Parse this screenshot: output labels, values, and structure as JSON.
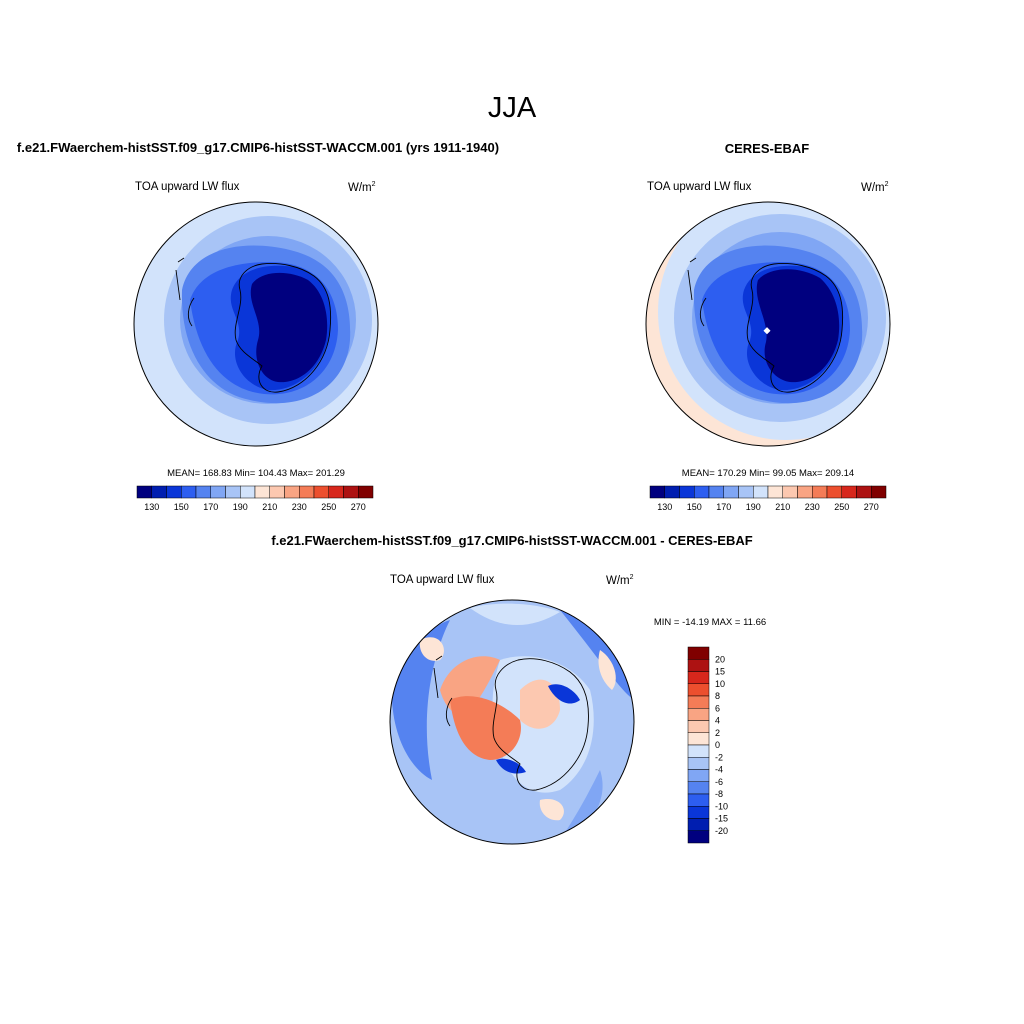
{
  "page": {
    "title": "JJA"
  },
  "panels": {
    "model": {
      "title": "f.e21.FWaerchem-histSST.f09_g17.CMIP6-histSST-WACCM.001 (yrs 1911-1940)",
      "variable": "TOA upward LW flux",
      "units": "W/m",
      "units_sup": "2",
      "stats": "MEAN= 168.83  Min= 104.43  Max= 201.29",
      "colorbar_labels": [
        "130",
        "150",
        "170",
        "190",
        "210",
        "230",
        "250",
        "270"
      ]
    },
    "obs": {
      "title": "CERES-EBAF",
      "variable": "TOA upward LW flux",
      "units": "W/m",
      "units_sup": "2",
      "stats": "MEAN= 170.29  Min=  99.05  Max= 209.14",
      "colorbar_labels": [
        "130",
        "150",
        "170",
        "190",
        "210",
        "230",
        "250",
        "270"
      ]
    },
    "diff": {
      "title": "f.e21.FWaerchem-histSST.f09_g17.CMIP6-histSST-WACCM.001 - CERES-EBAF",
      "variable": "TOA upward LW flux",
      "units": "W/m",
      "units_sup": "2",
      "stats": "MIN = -14.19 MAX =  11.66",
      "colorbar_labels": [
        "20",
        "15",
        "10",
        "8",
        "6",
        "4",
        "2",
        "0",
        "-2",
        "-4",
        "-6",
        "-8",
        "-10",
        "-15",
        "-20"
      ]
    }
  },
  "colors": {
    "main_scale": [
      "#00007f",
      "#001eb0",
      "#0a36d8",
      "#2d5ef0",
      "#5583f0",
      "#80a6f4",
      "#a8c4f6",
      "#d2e3fb",
      "#fde5d6",
      "#fcc8b0",
      "#f9a483",
      "#f47c57",
      "#ec4f2e",
      "#d7271c",
      "#ad1212",
      "#800000"
    ],
    "diff_scale": [
      "#800000",
      "#ad1212",
      "#d7271c",
      "#ec4f2e",
      "#f47c57",
      "#f9a483",
      "#fcc8b0",
      "#fde5d6",
      "#d2e3fb",
      "#a8c4f6",
      "#80a6f4",
      "#5583f0",
      "#2d5ef0",
      "#0a36d8",
      "#001eb0",
      "#00007f"
    ]
  }
}
